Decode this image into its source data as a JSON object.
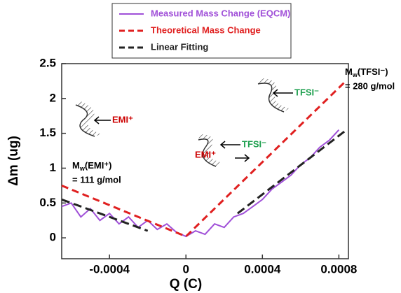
{
  "chart_data": {
    "type": "line",
    "x_label": "Q (C)",
    "y_label": "Δm (ug)",
    "xlim": [
      -0.00065,
      0.00085
    ],
    "ylim": [
      -0.3,
      2.5
    ],
    "xticks": [
      -0.0004,
      0,
      0.0004,
      0.0008
    ],
    "yticks": [
      0,
      0.5,
      1,
      1.5,
      2,
      2.5
    ],
    "series": [
      {
        "name": "Measured Mass Change (EQCM)",
        "color": "#a050d8",
        "dash": "none",
        "x": [
          -0.00065,
          -0.0006,
          -0.00055,
          -0.0005,
          -0.00045,
          -0.0004,
          -0.00035,
          -0.0003,
          -0.00025,
          -0.0002,
          -0.00015,
          -0.0001,
          -5e-05,
          0,
          5e-05,
          0.0001,
          0.00015,
          0.0002,
          0.00025,
          0.0003,
          0.00035,
          0.0004,
          0.00045,
          0.0005,
          0.00055,
          0.0006,
          0.00065,
          0.0007,
          0.00075,
          0.0008
        ],
        "values": [
          0.45,
          0.5,
          0.3,
          0.42,
          0.25,
          0.35,
          0.2,
          0.3,
          0.15,
          0.25,
          0.12,
          0.2,
          0.08,
          0.02,
          0.1,
          0.05,
          0.2,
          0.15,
          0.3,
          0.35,
          0.45,
          0.55,
          0.7,
          0.8,
          0.9,
          1.05,
          1.15,
          1.3,
          1.4,
          1.55
        ]
      },
      {
        "name": "Theoretical Mass Change",
        "color": "#e02020",
        "dash": "10,6",
        "x": [
          -0.00065,
          0,
          0.00084
        ],
        "values": [
          0.75,
          0.02,
          2.26
        ]
      },
      {
        "name": "Linear Fitting",
        "color": "#222222",
        "dash": "12,6",
        "x": [
          -0.00065,
          -0.0002,
          0,
          0.00027,
          0.00084
        ],
        "values": [
          0.55,
          0.1,
          null,
          0.35,
          1.55
        ]
      }
    ],
    "annotations": {
      "emi_left": {
        "text": "EMI⁺",
        "color": "#cc0000"
      },
      "tfsi_right": {
        "text": "TFSI⁻",
        "color": "#20a050"
      },
      "tfsi_mid": {
        "text": "TFSI⁻",
        "color": "#20a050"
      },
      "emi_mid": {
        "text": "EMI⁺",
        "color": "#cc0000"
      },
      "mw_tfsi": {
        "base": "M",
        "sub": "w",
        "tail": "(TFSI⁻)",
        "line2": "= 280 g/mol"
      },
      "mw_emi": {
        "base": "M",
        "sub": "w",
        "tail": "(EMI⁺)",
        "line2": "= 111 g/mol"
      }
    }
  }
}
